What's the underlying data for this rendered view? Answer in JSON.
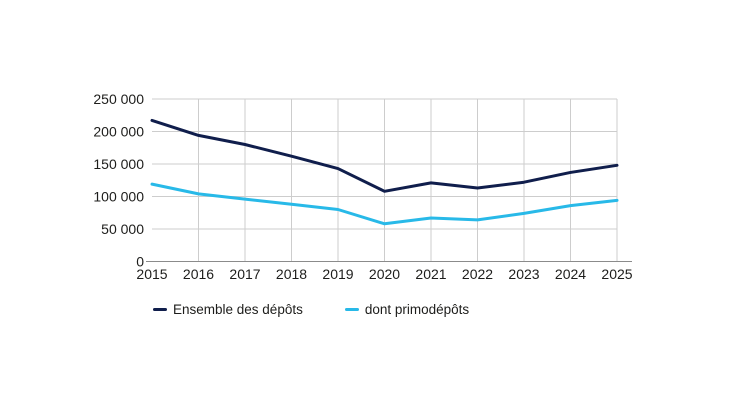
{
  "chart_data": {
    "type": "line",
    "categories": [
      "2015",
      "2016",
      "2017",
      "2018",
      "2019",
      "2020",
      "2021",
      "2022",
      "2023",
      "2024",
      "2025"
    ],
    "series": [
      {
        "name": "Ensemble des dépôts",
        "color": "#101e4c",
        "values": [
          217000,
          194000,
          180000,
          162000,
          143000,
          108000,
          121000,
          113000,
          122000,
          137000,
          148000
        ]
      },
      {
        "name": "dont primodépôts",
        "color": "#28b9e8",
        "values": [
          119000,
          104000,
          96000,
          88000,
          80000,
          58000,
          67000,
          64000,
          74000,
          86000,
          94000
        ]
      }
    ],
    "ylim": [
      0,
      250000
    ],
    "yticks": [
      0,
      50000,
      100000,
      150000,
      200000,
      250000
    ],
    "ytick_labels": [
      "0",
      "50 000",
      "100 000",
      "150 000",
      "200 000",
      "250 000"
    ],
    "grid": true,
    "legend_position": "bottom"
  },
  "colors": {
    "grid": "#cdcdcd",
    "axis": "#8b8b8b",
    "text": "#1d1d1b",
    "background": "#ffffff"
  }
}
